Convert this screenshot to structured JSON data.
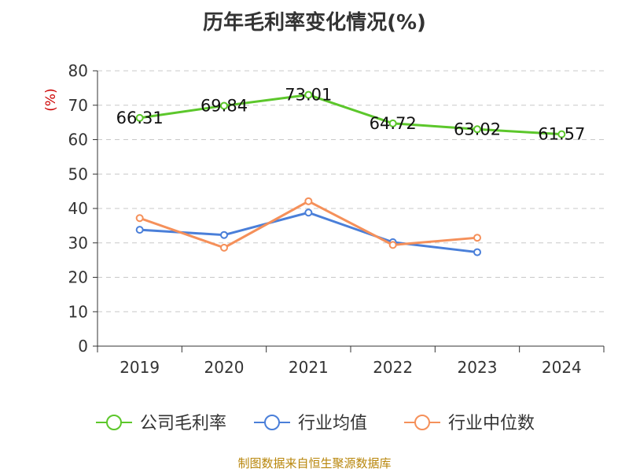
{
  "chart_data": {
    "type": "line",
    "title": "历年毛利率变化情况(%)",
    "ylabel": "(%)",
    "xlabel": "",
    "categories": [
      "2019",
      "2020",
      "2021",
      "2022",
      "2023",
      "2024"
    ],
    "ylim": [
      0,
      80
    ],
    "yticks": [
      0,
      10,
      20,
      30,
      40,
      50,
      60,
      70,
      80
    ],
    "grid": true,
    "legend_position": "bottom",
    "series": [
      {
        "name": "公司毛利率",
        "color": "#5cc72b",
        "values": [
          66.31,
          69.84,
          73.01,
          64.72,
          63.02,
          61.57
        ],
        "labels": [
          "66.31",
          "69.84",
          "73.01",
          "64.72",
          "63.02",
          "61.57"
        ]
      },
      {
        "name": "行业均值",
        "color": "#4a7fd9",
        "values": [
          33.8,
          32.3,
          38.8,
          30.2,
          27.3,
          null
        ]
      },
      {
        "name": "行业中位数",
        "color": "#f5905a",
        "values": [
          37.2,
          28.6,
          42.1,
          29.4,
          31.5,
          null
        ]
      }
    ]
  },
  "footer": {
    "source": "制图数据来自恒生聚源数据库"
  }
}
